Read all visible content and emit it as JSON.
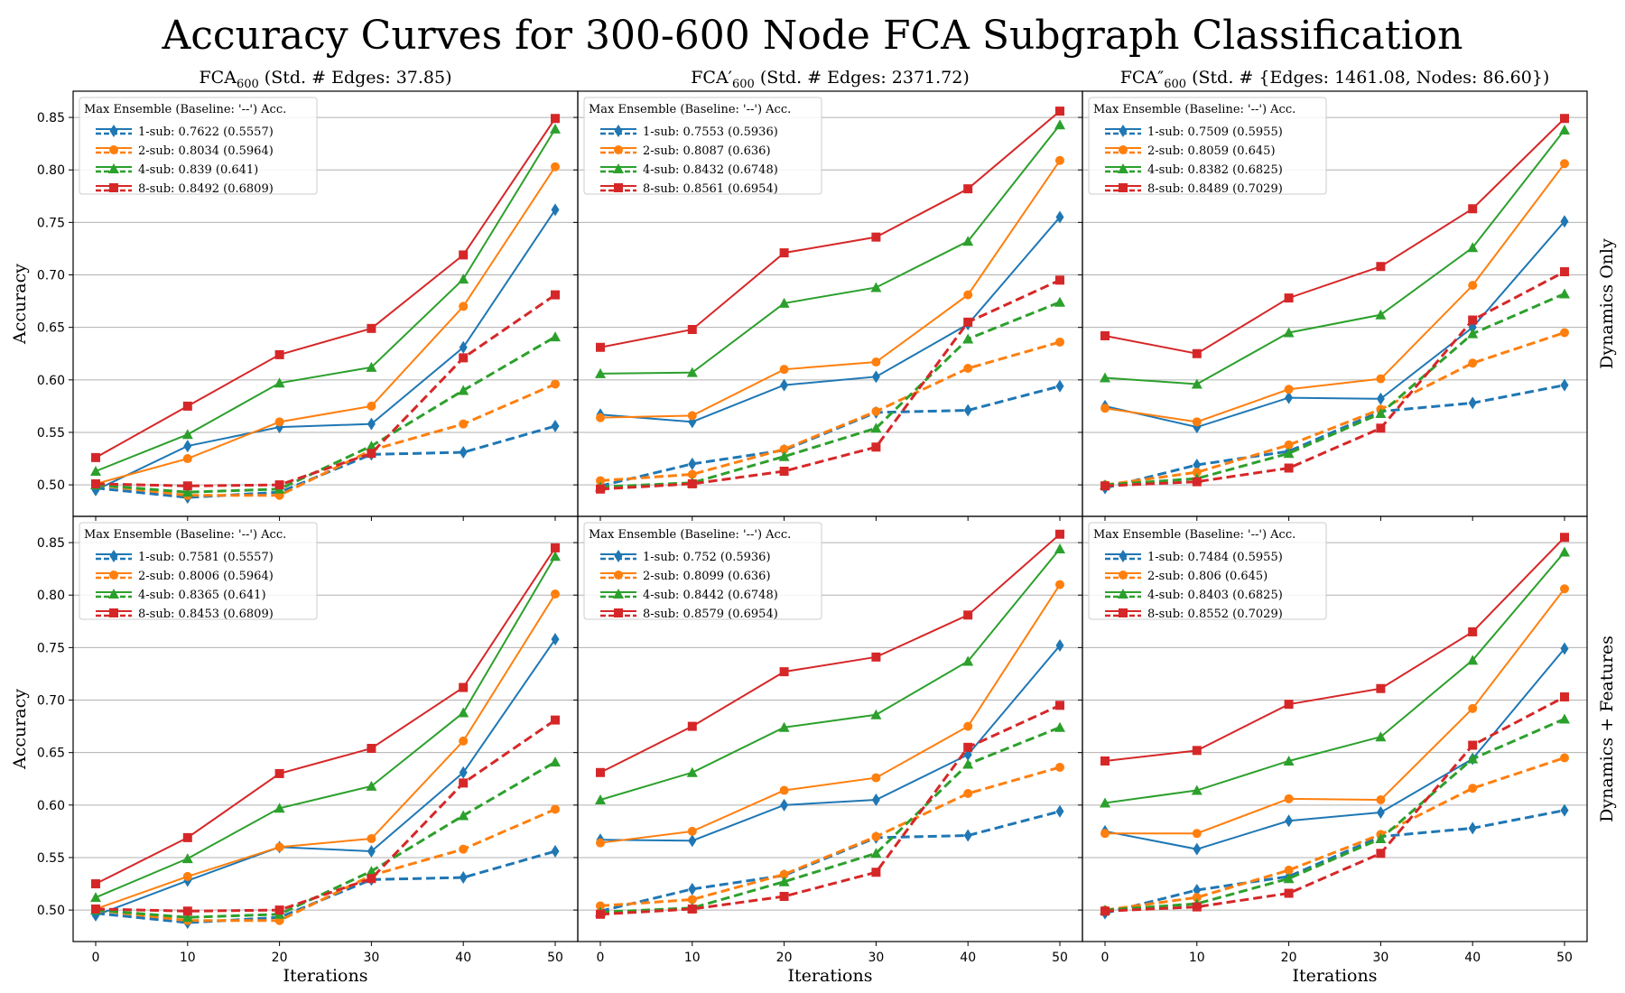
{
  "title": "Accuracy Curves for 300-600 Node FCA Subgraph Classification",
  "colors": {
    "1-sub": "#1f77b4",
    "2-sub": "#ff7f0e",
    "4-sub": "#2ca02c",
    "8-sub": "#d62728",
    "grid": "#b0b0b0"
  },
  "markers": {
    "1-sub": "diamond",
    "2-sub": "circle",
    "4-sub": "triangle",
    "8-sub": "square"
  },
  "row_labels": [
    "Dynamics Only",
    "Dynamics + Features"
  ],
  "column_titles": [
    {
      "base": "FCA",
      "prime": "",
      "sub": "600",
      "rest": " (Std. # Edges: 37.85)"
    },
    {
      "base": "FCA",
      "prime": "′",
      "sub": "600",
      "rest": " (Std. # Edges: 2371.72)"
    },
    {
      "base": "FCA",
      "prime": "″",
      "sub": "600",
      "rest": " (Std. # {Edges: 1461.08, Nodes: 86.60})"
    }
  ],
  "chart_data": [
    {
      "type": "line",
      "row": 0,
      "col": 0,
      "xlabel": "Iterations",
      "ylabel": "Accuracy",
      "x": [
        0,
        10,
        20,
        30,
        40,
        50
      ],
      "ylim": [
        0.47,
        0.875
      ],
      "xticks": [
        "0",
        "10",
        "20",
        "30",
        "40",
        "50"
      ],
      "yticks": [
        "0.50",
        "0.55",
        "0.60",
        "0.65",
        "0.70",
        "0.75",
        "0.80",
        "0.85"
      ],
      "legend_title": "Max Ensemble (Baseline: '--') Acc.",
      "legend": [
        "1-sub: 0.7622 (0.5557)",
        "2-sub: 0.8034 (0.5964)",
        "4-sub: 0.839 (0.641)",
        "8-sub: 0.8492 (0.6809)"
      ],
      "series": [
        {
          "name": "1-sub",
          "style": "solid",
          "values": [
            0.495,
            0.537,
            0.555,
            0.558,
            0.631,
            0.762
          ]
        },
        {
          "name": "2-sub",
          "style": "solid",
          "values": [
            0.501,
            0.525,
            0.56,
            0.575,
            0.67,
            0.803
          ]
        },
        {
          "name": "4-sub",
          "style": "solid",
          "values": [
            0.513,
            0.548,
            0.597,
            0.612,
            0.696,
            0.839
          ]
        },
        {
          "name": "8-sub",
          "style": "solid",
          "values": [
            0.526,
            0.575,
            0.624,
            0.649,
            0.719,
            0.849
          ]
        },
        {
          "name": "1-sub",
          "style": "dashed",
          "values": [
            0.497,
            0.488,
            0.493,
            0.529,
            0.531,
            0.556
          ]
        },
        {
          "name": "2-sub",
          "style": "dashed",
          "values": [
            0.5,
            0.49,
            0.49,
            0.533,
            0.558,
            0.596
          ]
        },
        {
          "name": "4-sub",
          "style": "dashed",
          "values": [
            0.5,
            0.493,
            0.496,
            0.537,
            0.59,
            0.641
          ]
        },
        {
          "name": "8-sub",
          "style": "dashed",
          "values": [
            0.501,
            0.499,
            0.5,
            0.53,
            0.621,
            0.681
          ]
        }
      ]
    },
    {
      "type": "line",
      "row": 0,
      "col": 1,
      "xlabel": "Iterations",
      "ylabel": "",
      "x": [
        0,
        10,
        20,
        30,
        40,
        50
      ],
      "ylim": [
        0.47,
        0.875
      ],
      "xticks": [
        "0",
        "10",
        "20",
        "30",
        "40",
        "50"
      ],
      "yticks": [],
      "legend_title": "Max Ensemble (Baseline: '--') Acc.",
      "legend": [
        "1-sub: 0.7553 (0.5936)",
        "2-sub: 0.8087 (0.636)",
        "4-sub: 0.8432 (0.6748)",
        "8-sub: 0.8561 (0.6954)"
      ],
      "series": [
        {
          "name": "1-sub",
          "style": "solid",
          "values": [
            0.567,
            0.56,
            0.595,
            0.603,
            0.653,
            0.755
          ]
        },
        {
          "name": "2-sub",
          "style": "solid",
          "values": [
            0.564,
            0.566,
            0.61,
            0.617,
            0.681,
            0.809
          ]
        },
        {
          "name": "4-sub",
          "style": "solid",
          "values": [
            0.606,
            0.607,
            0.673,
            0.688,
            0.732,
            0.843
          ]
        },
        {
          "name": "8-sub",
          "style": "solid",
          "values": [
            0.631,
            0.648,
            0.721,
            0.736,
            0.782,
            0.856
          ]
        },
        {
          "name": "1-sub",
          "style": "dashed",
          "values": [
            0.499,
            0.52,
            0.533,
            0.569,
            0.571,
            0.594
          ]
        },
        {
          "name": "2-sub",
          "style": "dashed",
          "values": [
            0.504,
            0.51,
            0.534,
            0.57,
            0.611,
            0.636
          ]
        },
        {
          "name": "4-sub",
          "style": "dashed",
          "values": [
            0.498,
            0.502,
            0.527,
            0.554,
            0.639,
            0.674
          ]
        },
        {
          "name": "8-sub",
          "style": "dashed",
          "values": [
            0.496,
            0.501,
            0.513,
            0.536,
            0.655,
            0.695
          ]
        }
      ]
    },
    {
      "type": "line",
      "row": 0,
      "col": 2,
      "xlabel": "Iterations",
      "ylabel": "",
      "x": [
        0,
        10,
        20,
        30,
        40,
        50
      ],
      "ylim": [
        0.47,
        0.875
      ],
      "xticks": [
        "0",
        "10",
        "20",
        "30",
        "40",
        "50"
      ],
      "yticks": [],
      "legend_title": "Max Ensemble (Baseline: '--') Acc.",
      "legend": [
        "1-sub: 0.7509 (0.5955)",
        "2-sub: 0.8059 (0.645)",
        "4-sub: 0.8382 (0.6825)",
        "8-sub: 0.8489 (0.7029)"
      ],
      "series": [
        {
          "name": "1-sub",
          "style": "solid",
          "values": [
            0.575,
            0.555,
            0.583,
            0.582,
            0.65,
            0.751
          ]
        },
        {
          "name": "2-sub",
          "style": "solid",
          "values": [
            0.573,
            0.56,
            0.591,
            0.601,
            0.69,
            0.806
          ]
        },
        {
          "name": "4-sub",
          "style": "solid",
          "values": [
            0.602,
            0.596,
            0.645,
            0.662,
            0.726,
            0.838
          ]
        },
        {
          "name": "8-sub",
          "style": "solid",
          "values": [
            0.642,
            0.625,
            0.678,
            0.708,
            0.763,
            0.849
          ]
        },
        {
          "name": "1-sub",
          "style": "dashed",
          "values": [
            0.497,
            0.519,
            0.532,
            0.57,
            0.578,
            0.595
          ]
        },
        {
          "name": "2-sub",
          "style": "dashed",
          "values": [
            0.5,
            0.512,
            0.538,
            0.572,
            0.616,
            0.645
          ]
        },
        {
          "name": "4-sub",
          "style": "dashed",
          "values": [
            0.5,
            0.506,
            0.53,
            0.568,
            0.644,
            0.682
          ]
        },
        {
          "name": "8-sub",
          "style": "dashed",
          "values": [
            0.499,
            0.503,
            0.516,
            0.554,
            0.657,
            0.703
          ]
        }
      ]
    },
    {
      "type": "line",
      "row": 1,
      "col": 0,
      "xlabel": "Iterations",
      "ylabel": "Accuracy",
      "x": [
        0,
        10,
        20,
        30,
        40,
        50
      ],
      "ylim": [
        0.47,
        0.875
      ],
      "xticks": [
        "0",
        "10",
        "20",
        "30",
        "40",
        "50"
      ],
      "yticks": [
        "0.50",
        "0.55",
        "0.60",
        "0.65",
        "0.70",
        "0.75",
        "0.80",
        "0.85"
      ],
      "legend_title": "Max Ensemble (Baseline: '--') Acc.",
      "legend": [
        "1-sub: 0.7581 (0.5557)",
        "2-sub: 0.8006 (0.5964)",
        "4-sub: 0.8365 (0.641)",
        "8-sub: 0.8453 (0.6809)"
      ],
      "series": [
        {
          "name": "1-sub",
          "style": "solid",
          "values": [
            0.495,
            0.528,
            0.56,
            0.556,
            0.631,
            0.758
          ]
        },
        {
          "name": "2-sub",
          "style": "solid",
          "values": [
            0.501,
            0.532,
            0.56,
            0.568,
            0.661,
            0.801
          ]
        },
        {
          "name": "4-sub",
          "style": "solid",
          "values": [
            0.512,
            0.549,
            0.597,
            0.618,
            0.688,
            0.837
          ]
        },
        {
          "name": "8-sub",
          "style": "solid",
          "values": [
            0.525,
            0.569,
            0.63,
            0.654,
            0.712,
            0.845
          ]
        },
        {
          "name": "1-sub",
          "style": "dashed",
          "values": [
            0.497,
            0.488,
            0.493,
            0.529,
            0.531,
            0.556
          ]
        },
        {
          "name": "2-sub",
          "style": "dashed",
          "values": [
            0.5,
            0.49,
            0.49,
            0.533,
            0.558,
            0.596
          ]
        },
        {
          "name": "4-sub",
          "style": "dashed",
          "values": [
            0.5,
            0.493,
            0.496,
            0.537,
            0.59,
            0.641
          ]
        },
        {
          "name": "8-sub",
          "style": "dashed",
          "values": [
            0.501,
            0.499,
            0.5,
            0.53,
            0.621,
            0.681
          ]
        }
      ]
    },
    {
      "type": "line",
      "row": 1,
      "col": 1,
      "xlabel": "Iterations",
      "ylabel": "",
      "x": [
        0,
        10,
        20,
        30,
        40,
        50
      ],
      "ylim": [
        0.47,
        0.875
      ],
      "xticks": [
        "0",
        "10",
        "20",
        "30",
        "40",
        "50"
      ],
      "yticks": [],
      "legend_title": "Max Ensemble (Baseline: '--') Acc.",
      "legend": [
        "1-sub: 0.752 (0.5936)",
        "2-sub: 0.8099 (0.636)",
        "4-sub: 0.8442 (0.6748)",
        "8-sub: 0.8579 (0.6954)"
      ],
      "series": [
        {
          "name": "1-sub",
          "style": "solid",
          "values": [
            0.567,
            0.566,
            0.6,
            0.605,
            0.648,
            0.752
          ]
        },
        {
          "name": "2-sub",
          "style": "solid",
          "values": [
            0.564,
            0.575,
            0.614,
            0.626,
            0.675,
            0.81
          ]
        },
        {
          "name": "4-sub",
          "style": "solid",
          "values": [
            0.605,
            0.631,
            0.674,
            0.686,
            0.737,
            0.844
          ]
        },
        {
          "name": "8-sub",
          "style": "solid",
          "values": [
            0.631,
            0.675,
            0.727,
            0.741,
            0.781,
            0.858
          ]
        },
        {
          "name": "1-sub",
          "style": "dashed",
          "values": [
            0.499,
            0.52,
            0.533,
            0.569,
            0.571,
            0.594
          ]
        },
        {
          "name": "2-sub",
          "style": "dashed",
          "values": [
            0.504,
            0.51,
            0.534,
            0.57,
            0.611,
            0.636
          ]
        },
        {
          "name": "4-sub",
          "style": "dashed",
          "values": [
            0.498,
            0.502,
            0.527,
            0.554,
            0.639,
            0.674
          ]
        },
        {
          "name": "8-sub",
          "style": "dashed",
          "values": [
            0.496,
            0.501,
            0.513,
            0.536,
            0.655,
            0.695
          ]
        }
      ]
    },
    {
      "type": "line",
      "row": 1,
      "col": 2,
      "xlabel": "Iterations",
      "ylabel": "",
      "x": [
        0,
        10,
        20,
        30,
        40,
        50
      ],
      "ylim": [
        0.47,
        0.875
      ],
      "xticks": [
        "0",
        "10",
        "20",
        "30",
        "40",
        "50"
      ],
      "yticks": [],
      "legend_title": "Max Ensemble (Baseline: '--') Acc.",
      "legend": [
        "1-sub: 0.7484 (0.5955)",
        "2-sub: 0.806 (0.645)",
        "4-sub: 0.8403 (0.6825)",
        "8-sub: 0.8552 (0.7029)"
      ],
      "series": [
        {
          "name": "1-sub",
          "style": "solid",
          "values": [
            0.575,
            0.558,
            0.585,
            0.593,
            0.644,
            0.749
          ]
        },
        {
          "name": "2-sub",
          "style": "solid",
          "values": [
            0.573,
            0.573,
            0.606,
            0.605,
            0.692,
            0.806
          ]
        },
        {
          "name": "4-sub",
          "style": "solid",
          "values": [
            0.602,
            0.614,
            0.642,
            0.665,
            0.738,
            0.841
          ]
        },
        {
          "name": "8-sub",
          "style": "solid",
          "values": [
            0.642,
            0.652,
            0.696,
            0.711,
            0.765,
            0.855
          ]
        },
        {
          "name": "1-sub",
          "style": "dashed",
          "values": [
            0.497,
            0.519,
            0.532,
            0.57,
            0.578,
            0.595
          ]
        },
        {
          "name": "2-sub",
          "style": "dashed",
          "values": [
            0.5,
            0.512,
            0.538,
            0.572,
            0.616,
            0.645
          ]
        },
        {
          "name": "4-sub",
          "style": "dashed",
          "values": [
            0.5,
            0.506,
            0.53,
            0.568,
            0.644,
            0.682
          ]
        },
        {
          "name": "8-sub",
          "style": "dashed",
          "values": [
            0.499,
            0.503,
            0.516,
            0.554,
            0.657,
            0.703
          ]
        }
      ]
    }
  ]
}
